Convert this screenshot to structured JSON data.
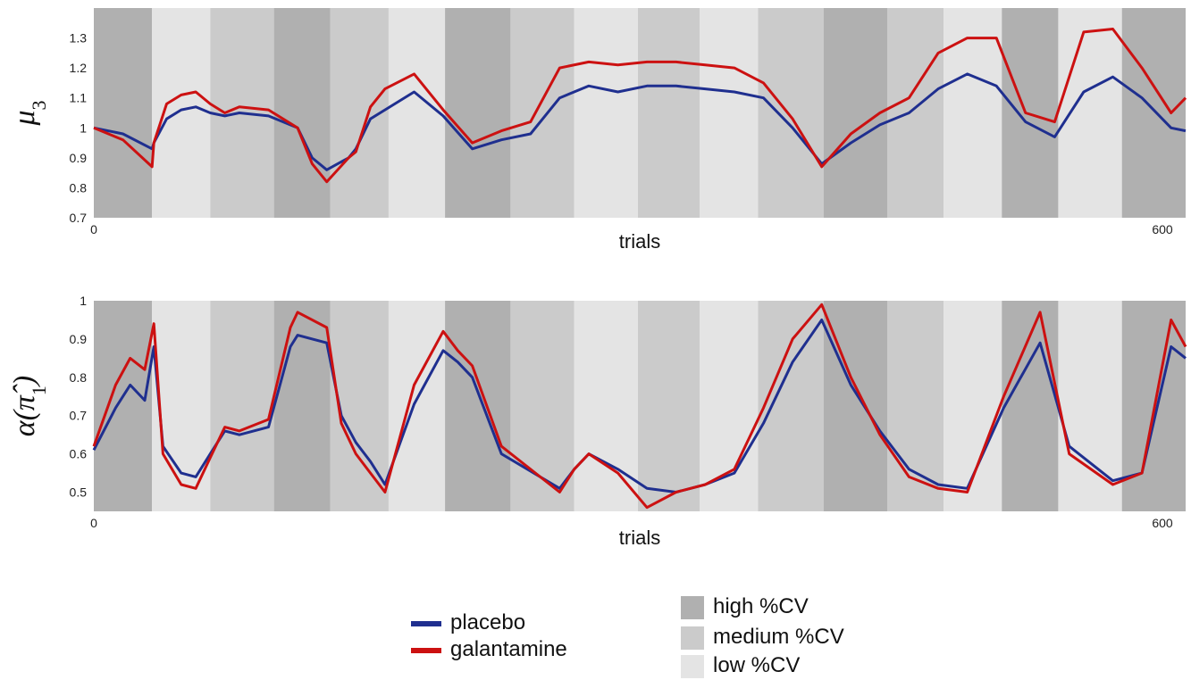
{
  "chart_data": [
    {
      "type": "line",
      "ylabel_main": "μ",
      "ylabel_sub": "3",
      "xlabel": "trials",
      "xlim": [
        0,
        600
      ],
      "ylim": [
        0.7,
        1.4
      ],
      "xticks": [
        "0",
        "600"
      ],
      "yticks": [
        0.7,
        0.8,
        0.9,
        1,
        1.1,
        1.2,
        1.3
      ],
      "ytick_labels": [
        "0.7",
        "0.8",
        "0.9",
        "1",
        "1.1",
        "1.2",
        "1.3"
      ],
      "series": [
        {
          "name": "placebo",
          "color": "#1f2f8f",
          "x": [
            0,
            16,
            32,
            33,
            40,
            48,
            56,
            64,
            72,
            80,
            96,
            112,
            120,
            128,
            140,
            144,
            152,
            160,
            176,
            192,
            208,
            224,
            240,
            256,
            272,
            288,
            304,
            320,
            336,
            352,
            368,
            384,
            400,
            416,
            432,
            448,
            464,
            480,
            496,
            512,
            528,
            544,
            560,
            576,
            592,
            600
          ],
          "y": [
            1.0,
            0.98,
            0.93,
            0.95,
            1.03,
            1.06,
            1.07,
            1.05,
            1.04,
            1.05,
            1.04,
            1.0,
            0.9,
            0.86,
            0.9,
            0.93,
            1.03,
            1.06,
            1.12,
            1.04,
            0.93,
            0.96,
            0.98,
            1.1,
            1.14,
            1.12,
            1.14,
            1.14,
            1.13,
            1.12,
            1.1,
            1.0,
            0.88,
            0.95,
            1.01,
            1.05,
            1.13,
            1.18,
            1.14,
            1.02,
            0.97,
            1.12,
            1.17,
            1.1,
            1.0,
            0.99
          ]
        },
        {
          "name": "galantamine",
          "color": "#cc1111",
          "x": [
            0,
            16,
            32,
            33,
            40,
            48,
            56,
            64,
            72,
            80,
            96,
            112,
            120,
            128,
            140,
            144,
            152,
            160,
            176,
            192,
            208,
            224,
            240,
            256,
            272,
            288,
            304,
            320,
            336,
            352,
            368,
            384,
            400,
            416,
            432,
            448,
            464,
            480,
            496,
            512,
            528,
            544,
            560,
            576,
            592,
            600
          ],
          "y": [
            1.0,
            0.96,
            0.87,
            0.95,
            1.08,
            1.11,
            1.12,
            1.08,
            1.05,
            1.07,
            1.06,
            1.0,
            0.88,
            0.82,
            0.9,
            0.92,
            1.07,
            1.13,
            1.18,
            1.06,
            0.95,
            0.99,
            1.02,
            1.2,
            1.22,
            1.21,
            1.22,
            1.22,
            1.21,
            1.2,
            1.15,
            1.03,
            0.87,
            0.98,
            1.05,
            1.1,
            1.25,
            1.3,
            1.3,
            1.05,
            1.02,
            1.32,
            1.33,
            1.2,
            1.05,
            1.1
          ]
        }
      ]
    },
    {
      "type": "line",
      "ylabel_main": "α(π̂",
      "ylabel_sub": "1",
      "ylabel_close": ")",
      "xlabel": "trials",
      "xlim": [
        0,
        600
      ],
      "ylim": [
        0.45,
        1.0
      ],
      "xticks": [
        "0",
        "600"
      ],
      "yticks": [
        0.5,
        0.6,
        0.7,
        0.8,
        0.9,
        1
      ],
      "ytick_labels": [
        "0.5",
        "0.6",
        "0.7",
        "0.8",
        "0.9",
        "1"
      ],
      "series": [
        {
          "name": "placebo",
          "color": "#1f2f8f",
          "x": [
            0,
            12,
            20,
            28,
            33,
            38,
            48,
            56,
            64,
            72,
            80,
            96,
            108,
            112,
            128,
            136,
            144,
            152,
            160,
            176,
            192,
            200,
            208,
            224,
            256,
            264,
            272,
            288,
            304,
            320,
            336,
            352,
            368,
            384,
            400,
            416,
            432,
            448,
            464,
            480,
            500,
            520,
            536,
            560,
            576,
            592,
            600
          ],
          "y": [
            0.61,
            0.72,
            0.78,
            0.74,
            0.88,
            0.62,
            0.55,
            0.54,
            0.6,
            0.66,
            0.65,
            0.67,
            0.88,
            0.91,
            0.89,
            0.7,
            0.63,
            0.58,
            0.52,
            0.73,
            0.87,
            0.84,
            0.8,
            0.6,
            0.51,
            0.56,
            0.6,
            0.56,
            0.51,
            0.5,
            0.52,
            0.55,
            0.68,
            0.84,
            0.95,
            0.78,
            0.66,
            0.56,
            0.52,
            0.51,
            0.72,
            0.89,
            0.62,
            0.53,
            0.55,
            0.88,
            0.85
          ]
        },
        {
          "name": "galantamine",
          "color": "#cc1111",
          "x": [
            0,
            12,
            20,
            28,
            33,
            38,
            48,
            56,
            64,
            72,
            80,
            96,
            108,
            112,
            128,
            136,
            144,
            152,
            160,
            176,
            192,
            200,
            208,
            224,
            256,
            264,
            272,
            288,
            304,
            320,
            336,
            352,
            368,
            384,
            400,
            416,
            432,
            448,
            464,
            480,
            500,
            520,
            536,
            560,
            576,
            592,
            600
          ],
          "y": [
            0.62,
            0.78,
            0.85,
            0.82,
            0.94,
            0.6,
            0.52,
            0.51,
            0.59,
            0.67,
            0.66,
            0.69,
            0.93,
            0.97,
            0.93,
            0.68,
            0.6,
            0.55,
            0.5,
            0.78,
            0.92,
            0.87,
            0.83,
            0.62,
            0.5,
            0.56,
            0.6,
            0.55,
            0.46,
            0.5,
            0.52,
            0.56,
            0.72,
            0.9,
            0.99,
            0.8,
            0.65,
            0.54,
            0.51,
            0.5,
            0.75,
            0.97,
            0.6,
            0.52,
            0.55,
            0.95,
            0.88
          ]
        }
      ]
    }
  ],
  "bands": [
    {
      "start": 0,
      "end": 32,
      "level": "high"
    },
    {
      "start": 32,
      "end": 64,
      "level": "low"
    },
    {
      "start": 64,
      "end": 99,
      "level": "medium"
    },
    {
      "start": 99,
      "end": 130,
      "level": "high"
    },
    {
      "start": 130,
      "end": 162,
      "level": "medium"
    },
    {
      "start": 162,
      "end": 193,
      "level": "low"
    },
    {
      "start": 193,
      "end": 229,
      "level": "high"
    },
    {
      "start": 229,
      "end": 264,
      "level": "medium"
    },
    {
      "start": 264,
      "end": 299,
      "level": "low"
    },
    {
      "start": 299,
      "end": 333,
      "level": "medium"
    },
    {
      "start": 333,
      "end": 365,
      "level": "low"
    },
    {
      "start": 365,
      "end": 401,
      "level": "medium"
    },
    {
      "start": 401,
      "end": 436,
      "level": "high"
    },
    {
      "start": 436,
      "end": 467,
      "level": "medium"
    },
    {
      "start": 467,
      "end": 499,
      "level": "low"
    },
    {
      "start": 499,
      "end": 530,
      "level": "high"
    },
    {
      "start": 530,
      "end": 565,
      "level": "low"
    },
    {
      "start": 565,
      "end": 600,
      "level": "high"
    }
  ],
  "band_colors": {
    "high": "#b0b0b0",
    "medium": "#cbcbcb",
    "low": "#e4e4e4"
  },
  "legend": {
    "lines": [
      {
        "label": "placebo",
        "color": "#1f2f8f"
      },
      {
        "label": "galantamine",
        "color": "#cc1111"
      }
    ],
    "bands": [
      {
        "label": "high %CV",
        "color": "#b0b0b0"
      },
      {
        "label": "medium %CV",
        "color": "#cbcbcb"
      },
      {
        "label": "low %CV",
        "color": "#e4e4e4"
      }
    ]
  }
}
